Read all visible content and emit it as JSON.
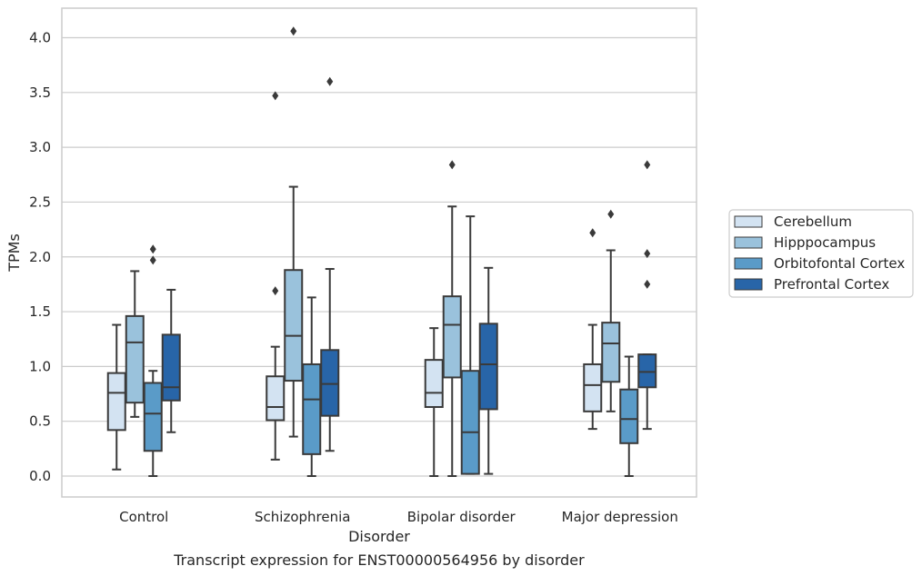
{
  "chart_data": {
    "type": "box",
    "title": "",
    "caption": "Transcript expression for ENST00000564956 by disorder",
    "xlabel": "Disorder",
    "ylabel": "TPMs",
    "ylim": [
      -0.2,
      4.27
    ],
    "yticks": [
      "0.0",
      "0.5",
      "1.0",
      "1.5",
      "2.0",
      "2.5",
      "3.0",
      "3.5",
      "4.0"
    ],
    "grid": "horizontal",
    "legend_position": "right",
    "categories": [
      "Control",
      "Schizophrenia",
      "Bipolar disorder",
      "Major depression"
    ],
    "series": [
      {
        "name": "Cerebellum",
        "color": "#d3e3f2",
        "boxes": [
          {
            "whisker_low": 0.06,
            "q1": 0.42,
            "median": 0.76,
            "q3": 0.94,
            "whisker_high": 1.38,
            "outliers": []
          },
          {
            "whisker_low": 0.15,
            "q1": 0.51,
            "median": 0.63,
            "q3": 0.91,
            "whisker_high": 1.18,
            "outliers": [
              1.69,
              3.47
            ]
          },
          {
            "whisker_low": 0.0,
            "q1": 0.63,
            "median": 0.76,
            "q3": 1.06,
            "whisker_high": 1.35,
            "outliers": []
          },
          {
            "whisker_low": 0.43,
            "q1": 0.59,
            "median": 0.83,
            "q3": 1.02,
            "whisker_high": 1.38,
            "outliers": [
              2.22
            ]
          }
        ]
      },
      {
        "name": "Hipppocampus",
        "color": "#9ac2dc",
        "boxes": [
          {
            "whisker_low": 0.54,
            "q1": 0.67,
            "median": 1.22,
            "q3": 1.46,
            "whisker_high": 1.87,
            "outliers": []
          },
          {
            "whisker_low": 0.36,
            "q1": 0.87,
            "median": 1.28,
            "q3": 1.88,
            "whisker_high": 2.64,
            "outliers": [
              4.06
            ]
          },
          {
            "whisker_low": 0.0,
            "q1": 0.9,
            "median": 1.38,
            "q3": 1.64,
            "whisker_high": 2.46,
            "outliers": [
              2.84
            ]
          },
          {
            "whisker_low": 0.59,
            "q1": 0.86,
            "median": 1.21,
            "q3": 1.4,
            "whisker_high": 2.06,
            "outliers": [
              2.39
            ]
          }
        ]
      },
      {
        "name": "Orbitofontal Cortex",
        "color": "#5a9bc8",
        "boxes": [
          {
            "whisker_low": 0.0,
            "q1": 0.23,
            "median": 0.57,
            "q3": 0.85,
            "whisker_high": 0.96,
            "outliers": [
              1.97,
              2.07
            ]
          },
          {
            "whisker_low": 0.0,
            "q1": 0.2,
            "median": 0.7,
            "q3": 1.02,
            "whisker_high": 1.63,
            "outliers": []
          },
          {
            "whisker_low": 0.02,
            "q1": 0.02,
            "median": 0.4,
            "q3": 0.96,
            "whisker_high": 2.37,
            "outliers": []
          },
          {
            "whisker_low": 0.0,
            "q1": 0.3,
            "median": 0.52,
            "q3": 0.79,
            "whisker_high": 1.09,
            "outliers": []
          }
        ]
      },
      {
        "name": "Prefrontal Cortex",
        "color": "#2865a8",
        "boxes": [
          {
            "whisker_low": 0.4,
            "q1": 0.69,
            "median": 0.81,
            "q3": 1.29,
            "whisker_high": 1.7,
            "outliers": []
          },
          {
            "whisker_low": 0.23,
            "q1": 0.55,
            "median": 0.84,
            "q3": 1.15,
            "whisker_high": 1.89,
            "outliers": [
              3.6
            ]
          },
          {
            "whisker_low": 0.02,
            "q1": 0.61,
            "median": 1.02,
            "q3": 1.39,
            "whisker_high": 1.9,
            "outliers": []
          },
          {
            "whisker_low": 0.43,
            "q1": 0.81,
            "median": 0.95,
            "q3": 1.11,
            "whisker_high": 1.11,
            "outliers": [
              1.75,
              2.03,
              2.84
            ]
          }
        ]
      }
    ]
  }
}
